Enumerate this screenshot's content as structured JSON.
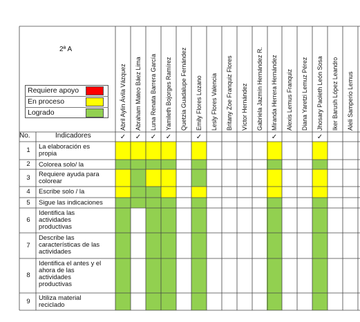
{
  "grade": "2ª A",
  "legend": [
    {
      "label": "Requiere apoyo",
      "color": "#ff0000"
    },
    {
      "label": "En proceso",
      "color": "#ffff00"
    },
    {
      "label": "Logrado",
      "color": "#92d050"
    }
  ],
  "columns": {
    "no": "No.",
    "indicadores": "Indicadores"
  },
  "students": [
    "Abril Aylin Ávila Vázquez",
    "Abraham Mateo Báez Lima",
    "Luna Renata Barrera García",
    "Yamileth Bojorges Ramírez",
    "Quetzia Guadalupe Fernández",
    "Emily Flores Lozano",
    "Lesly Flores Valencia",
    "Britany Zoe Franquiz Flores",
    "Víctor Hernández",
    "Gabriela Jazmín Hernández R.",
    "Miranda Herrera Hernández",
    "Alexis Lemus Franquiz",
    "Diana Yaretzi Lemuz Pérez",
    "Jhosary Paoleth León Sosa",
    "Iker Barush López Leandro",
    "Aleli Samperio Lemus"
  ],
  "checks": [
    "✓",
    "✓",
    "✓",
    "✓",
    "",
    "✓",
    "",
    "",
    "",
    "",
    "✓",
    "",
    "",
    "✓",
    "",
    ""
  ],
  "indicators": [
    {
      "no": "1",
      "lines": [
        "La elaboración es",
        "propia"
      ]
    },
    {
      "no": "2",
      "lines": [
        "Colorea solo/ la"
      ]
    },
    {
      "no": "3",
      "lines": [
        "Requiere ayuda para",
        "colorear"
      ]
    },
    {
      "no": "4",
      "lines": [
        "Escribe solo / la"
      ]
    },
    {
      "no": "5",
      "lines": [
        "Sigue las indicaciones"
      ]
    },
    {
      "no": "6",
      "lines": [
        "Identifica las",
        "actividades",
        "productivas"
      ]
    },
    {
      "no": "7",
      "lines": [
        "Describe las",
        "características de las",
        "actividades"
      ]
    },
    {
      "no": "8",
      "lines": [
        "Identifica el antes y el",
        "ahora de las",
        "actividades",
        "productivas"
      ]
    },
    {
      "no": "9",
      "lines": [
        "Utiliza material",
        "reciclado"
      ]
    }
  ],
  "matrix": [
    [
      "Y",
      "Y",
      "Y",
      "Y",
      "",
      "Y",
      "",
      "",
      "",
      "",
      "Y",
      "",
      "",
      "Y",
      "",
      ""
    ],
    [
      "G",
      "G",
      "G",
      "G",
      "",
      "G",
      "",
      "",
      "",
      "",
      "G",
      "",
      "",
      "G",
      "",
      ""
    ],
    [
      "Y",
      "G",
      "Y",
      "Y",
      "",
      "G",
      "",
      "",
      "",
      "",
      "Y",
      "",
      "",
      "Y",
      "",
      ""
    ],
    [
      "Y",
      "G",
      "G",
      "Y",
      "",
      "Y",
      "",
      "",
      "",
      "",
      "Y",
      "",
      "",
      "Y",
      "",
      ""
    ],
    [
      "G",
      "G",
      "G",
      "G",
      "",
      "G",
      "",
      "",
      "",
      "",
      "G",
      "",
      "",
      "G",
      "",
      ""
    ],
    [
      "G",
      "",
      "G",
      "G",
      "",
      "G",
      "",
      "",
      "",
      "",
      "G",
      "",
      "",
      "G",
      "",
      ""
    ],
    [
      "G",
      "",
      "G",
      "G",
      "",
      "G",
      "",
      "",
      "",
      "",
      "G",
      "",
      "",
      "G",
      "",
      ""
    ],
    [
      "G",
      "",
      "G",
      "G",
      "",
      "G",
      "",
      "",
      "",
      "",
      "G",
      "",
      "",
      "G",
      "",
      ""
    ],
    [
      "G",
      "",
      "G",
      "G",
      "",
      "G",
      "",
      "",
      "",
      "",
      "G",
      "",
      "",
      "G",
      "",
      ""
    ]
  ],
  "colors": {
    "Y": "#ffff00",
    "G": "#92d050",
    "R": "#ff0000"
  }
}
